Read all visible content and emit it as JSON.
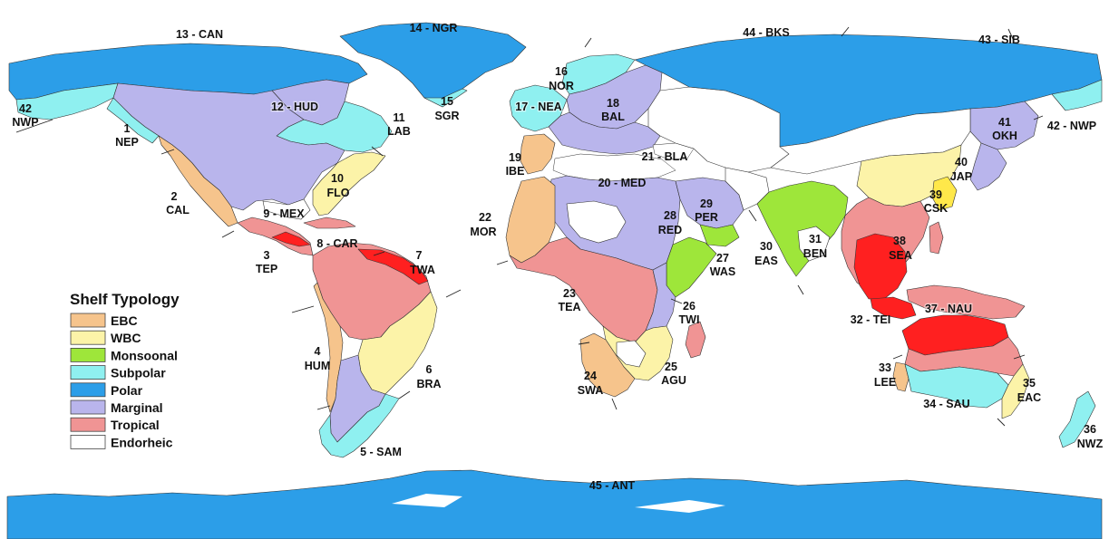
{
  "legend": {
    "title": "Shelf Typology",
    "items": [
      {
        "key": "EBC",
        "label": "EBC",
        "color": "#f6c48c"
      },
      {
        "key": "WBC",
        "label": "WBC",
        "color": "#fcf3a8"
      },
      {
        "key": "Monsoonal",
        "label": "Monsoonal",
        "color": "#9ee63a"
      },
      {
        "key": "Subpolar",
        "label": "Subpolar",
        "color": "#8ff0f0"
      },
      {
        "key": "Polar",
        "label": "Polar",
        "color": "#2c9ee8"
      },
      {
        "key": "Marginal",
        "label": "Marginal",
        "color": "#b9b5ec"
      },
      {
        "key": "Tropical",
        "label": "Tropical",
        "color": "#f09494"
      },
      {
        "key": "Endorheic",
        "label": "Endorheic",
        "color": "#ffffff"
      }
    ]
  },
  "colors": {
    "polar": "#2c9ee8",
    "subpolar": "#8ff0f0",
    "marginal": "#b9b5ec",
    "tropical": "#f09494",
    "tropical_intense": "#ff2020",
    "ebc": "#f6c48c",
    "wbc": "#fcf3a8",
    "monsoonal": "#9ee63a",
    "endorheic": "#ffffff",
    "border": "#333333"
  },
  "regions": [
    {
      "id": "1",
      "line1": "1",
      "line2": "NEP"
    },
    {
      "id": "2",
      "line1": "2",
      "line2": "CAL"
    },
    {
      "id": "3",
      "line1": "3",
      "line2": "TEP"
    },
    {
      "id": "4",
      "line1": "4",
      "line2": "HUM"
    },
    {
      "id": "5",
      "line1": "5 - SAM",
      "line2": ""
    },
    {
      "id": "6",
      "line1": "6",
      "line2": "BRA"
    },
    {
      "id": "7",
      "line1": "7",
      "line2": "TWA"
    },
    {
      "id": "8",
      "line1": "8 - CAR",
      "line2": ""
    },
    {
      "id": "9",
      "line1": "9 - MEX",
      "line2": ""
    },
    {
      "id": "10",
      "line1": "10",
      "line2": "FLO"
    },
    {
      "id": "11",
      "line1": "11",
      "line2": "LAB"
    },
    {
      "id": "12",
      "line1": "12 - HUD",
      "line2": ""
    },
    {
      "id": "13",
      "line1": "13 - CAN",
      "line2": ""
    },
    {
      "id": "14",
      "line1": "14 - NGR",
      "line2": ""
    },
    {
      "id": "15",
      "line1": "15",
      "line2": "SGR"
    },
    {
      "id": "16",
      "line1": "16",
      "line2": "NOR"
    },
    {
      "id": "17",
      "line1": "17 - NEA",
      "line2": ""
    },
    {
      "id": "18",
      "line1": "18",
      "line2": "BAL"
    },
    {
      "id": "19",
      "line1": "19",
      "line2": "IBE"
    },
    {
      "id": "20",
      "line1": "20 - MED",
      "line2": ""
    },
    {
      "id": "21",
      "line1": "21 - BLA",
      "line2": ""
    },
    {
      "id": "22",
      "line1": "22",
      "line2": "MOR"
    },
    {
      "id": "23",
      "line1": "23",
      "line2": "TEA"
    },
    {
      "id": "24",
      "line1": "24",
      "line2": "SWA"
    },
    {
      "id": "25",
      "line1": "25",
      "line2": "AGU"
    },
    {
      "id": "26",
      "line1": "26",
      "line2": "TWI"
    },
    {
      "id": "27",
      "line1": "27",
      "line2": "WAS"
    },
    {
      "id": "28",
      "line1": "28",
      "line2": "RED"
    },
    {
      "id": "29",
      "line1": "29",
      "line2": "PER"
    },
    {
      "id": "30",
      "line1": "30",
      "line2": "EAS"
    },
    {
      "id": "31",
      "line1": "31",
      "line2": "BEN"
    },
    {
      "id": "32",
      "line1": "32 - TEI",
      "line2": ""
    },
    {
      "id": "33",
      "line1": "33",
      "line2": "LEE"
    },
    {
      "id": "34",
      "line1": "34 - SAU",
      "line2": ""
    },
    {
      "id": "35",
      "line1": "35",
      "line2": "EAC"
    },
    {
      "id": "36",
      "line1": "36",
      "line2": "NWZ"
    },
    {
      "id": "37",
      "line1": "37 - NAU",
      "line2": ""
    },
    {
      "id": "38",
      "line1": "38",
      "line2": "SEA"
    },
    {
      "id": "39",
      "line1": "39",
      "line2": "CSK"
    },
    {
      "id": "40",
      "line1": "40",
      "line2": "JAP"
    },
    {
      "id": "41",
      "line1": "41",
      "line2": "OKH"
    },
    {
      "id": "42w",
      "line1": "42",
      "line2": "NWP"
    },
    {
      "id": "42e",
      "line1": "42 - NWP",
      "line2": ""
    },
    {
      "id": "43",
      "line1": "43 - SIB",
      "line2": ""
    },
    {
      "id": "44",
      "line1": "44 - BKS",
      "line2": ""
    },
    {
      "id": "45",
      "line1": "45 - ANT",
      "line2": ""
    }
  ]
}
